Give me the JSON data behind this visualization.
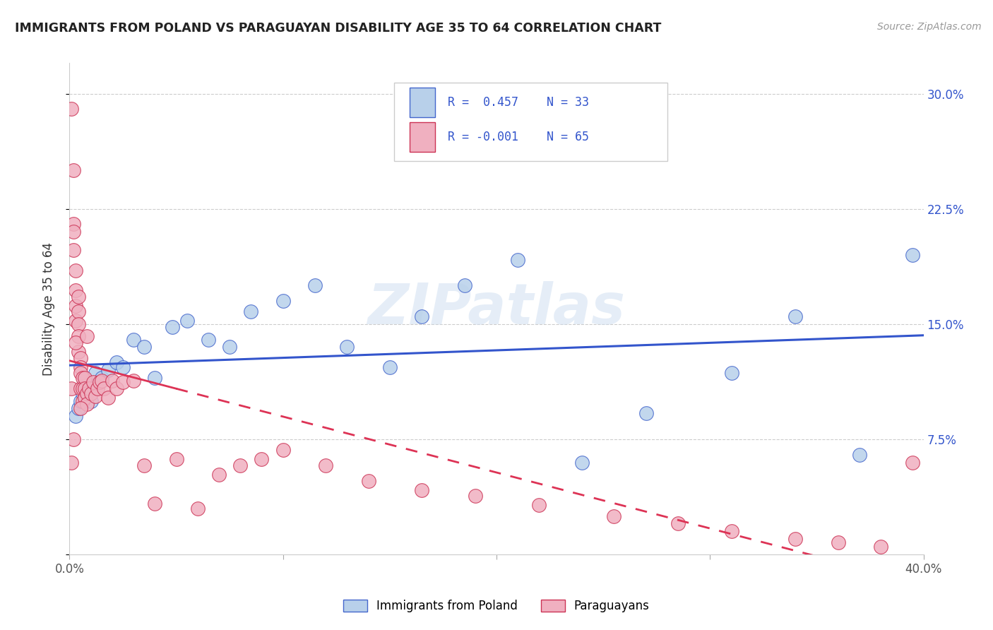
{
  "title": "IMMIGRANTS FROM POLAND VS PARAGUAYAN DISABILITY AGE 35 TO 64 CORRELATION CHART",
  "source": "Source: ZipAtlas.com",
  "ylabel": "Disability Age 35 to 64",
  "legend_label1": "Immigrants from Poland",
  "legend_label2": "Paraguayans",
  "r1": 0.457,
  "n1": 33,
  "r2": -0.001,
  "n2": 65,
  "xlim": [
    0.0,
    0.4
  ],
  "ylim": [
    0.0,
    0.32
  ],
  "color_blue_fill": "#b8d0ea",
  "color_blue_edge": "#4466cc",
  "color_pink_fill": "#f0b0c0",
  "color_pink_edge": "#cc3355",
  "line_blue": "#3355cc",
  "line_pink": "#dd3355",
  "watermark": "ZIPatlas",
  "blue_x": [
    0.003,
    0.004,
    0.005,
    0.006,
    0.007,
    0.008,
    0.01,
    0.012,
    0.015,
    0.018,
    0.022,
    0.025,
    0.03,
    0.035,
    0.04,
    0.048,
    0.055,
    0.065,
    0.075,
    0.085,
    0.1,
    0.115,
    0.13,
    0.15,
    0.165,
    0.185,
    0.21,
    0.24,
    0.27,
    0.31,
    0.34,
    0.37,
    0.395
  ],
  "blue_y": [
    0.09,
    0.095,
    0.1,
    0.105,
    0.112,
    0.108,
    0.1,
    0.118,
    0.115,
    0.12,
    0.125,
    0.122,
    0.14,
    0.135,
    0.115,
    0.148,
    0.152,
    0.14,
    0.135,
    0.158,
    0.165,
    0.175,
    0.135,
    0.122,
    0.155,
    0.175,
    0.192,
    0.06,
    0.092,
    0.118,
    0.155,
    0.065,
    0.195
  ],
  "pink_x": [
    0.001,
    0.001,
    0.002,
    0.002,
    0.002,
    0.002,
    0.003,
    0.003,
    0.003,
    0.003,
    0.004,
    0.004,
    0.004,
    0.004,
    0.004,
    0.005,
    0.005,
    0.005,
    0.005,
    0.006,
    0.006,
    0.006,
    0.007,
    0.007,
    0.007,
    0.008,
    0.008,
    0.009,
    0.01,
    0.011,
    0.012,
    0.013,
    0.014,
    0.015,
    0.016,
    0.018,
    0.02,
    0.022,
    0.025,
    0.03,
    0.035,
    0.04,
    0.05,
    0.06,
    0.07,
    0.08,
    0.09,
    0.1,
    0.12,
    0.14,
    0.165,
    0.19,
    0.22,
    0.255,
    0.285,
    0.31,
    0.34,
    0.36,
    0.38,
    0.395,
    0.001,
    0.002,
    0.003,
    0.005,
    0.008
  ],
  "pink_y": [
    0.29,
    0.108,
    0.25,
    0.215,
    0.21,
    0.198,
    0.185,
    0.172,
    0.162,
    0.152,
    0.168,
    0.158,
    0.15,
    0.142,
    0.132,
    0.128,
    0.122,
    0.118,
    0.108,
    0.115,
    0.108,
    0.1,
    0.115,
    0.108,
    0.102,
    0.105,
    0.098,
    0.108,
    0.105,
    0.112,
    0.103,
    0.108,
    0.112,
    0.113,
    0.108,
    0.102,
    0.113,
    0.108,
    0.112,
    0.113,
    0.058,
    0.033,
    0.062,
    0.03,
    0.052,
    0.058,
    0.062,
    0.068,
    0.058,
    0.048,
    0.042,
    0.038,
    0.032,
    0.025,
    0.02,
    0.015,
    0.01,
    0.008,
    0.005,
    0.06,
    0.06,
    0.075,
    0.138,
    0.095,
    0.142
  ]
}
